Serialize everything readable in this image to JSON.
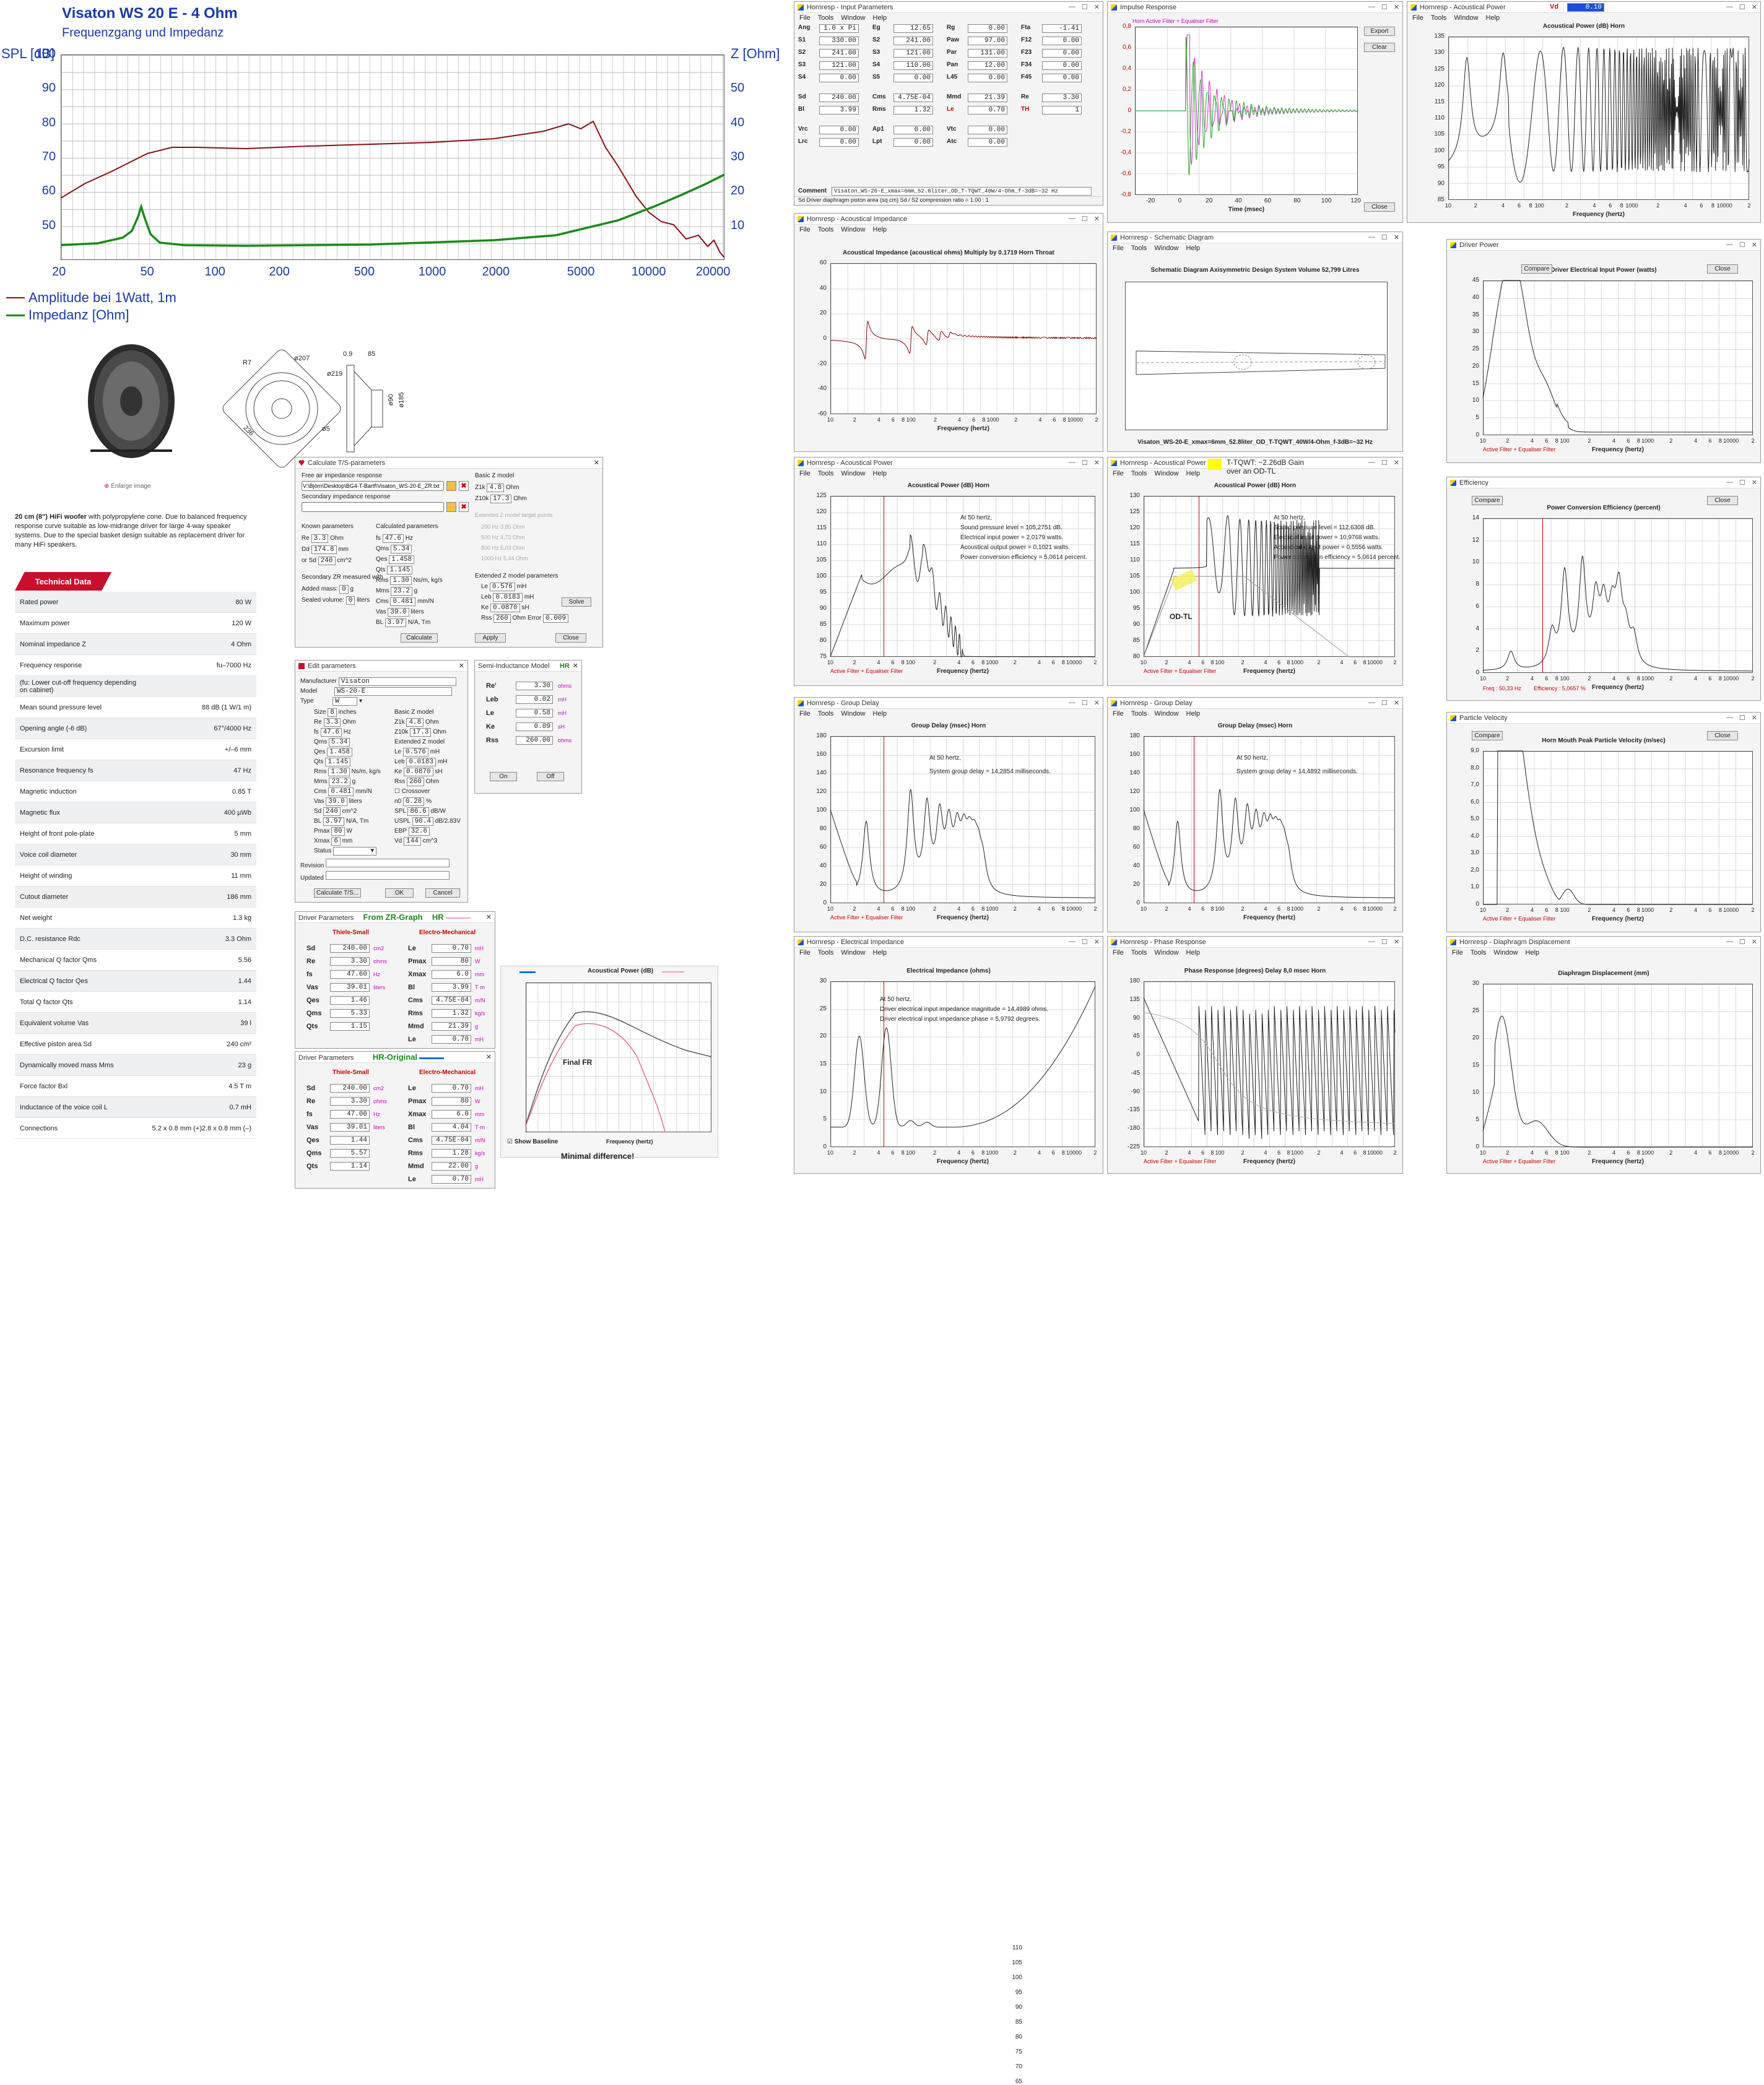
{
  "datasheet": {
    "title": "Visaton WS 20 E - 4 Ohm",
    "subtitle": "Frequenzgang und Impedanz",
    "left_unit": "SPL [dB]",
    "right_unit": "Z [Ohm]",
    "y_left": [
      "100",
      "90",
      "80",
      "70",
      "60",
      "50"
    ],
    "y_right": [
      "50",
      "40",
      "30",
      "20",
      "10"
    ],
    "x_ticks": [
      "20",
      "50",
      "100",
      "200",
      "500",
      "1000",
      "2000",
      "5000",
      "10000",
      "20000"
    ],
    "legend_amp": "Amplitude bei 1Watt, 1m",
    "legend_imp": "Impedanz [Ohm]",
    "dims": {
      "d207": "ø207",
      "d219": "ø219",
      "r7": "R7",
      "w236": "236",
      "d5": "ø5",
      "t09": "0.9",
      "t85": "85",
      "d90": "ø90",
      "d185": "ø185"
    },
    "enlarge": "Enlarge image",
    "description_bold": "20 cm (8\") HiFi woofer",
    "description": " with polypropylene cone. Due to balanced frequency response curve suitable as low-midrange driver for large 4-way speaker systems. Due to the special basket design suitable as replacement driver for many HiFi speakers.",
    "tech_tab": "Technical Data",
    "rows": [
      [
        "Rated power",
        "80 W"
      ],
      [
        "Maximum power",
        "120 W"
      ],
      [
        "Nominal impedance Z",
        "4 Ohm"
      ],
      [
        "Frequency response",
        "fu–7000 Hz"
      ],
      [
        "(fu: Lower cut-off frequency depending on cabinet)",
        ""
      ],
      [
        "Mean sound pressure level",
        "88 dB (1 W/1 m)"
      ],
      [
        "Opening angle (-6 dB)",
        "67°/4000 Hz"
      ],
      [
        "Excursion limit",
        "+/–6 mm"
      ],
      [
        "Resonance frequency fs",
        "47 Hz"
      ],
      [
        "Magnetic induction",
        "0.85 T"
      ],
      [
        "Magnetic flux",
        "400 µWb"
      ],
      [
        "Height of front pole-plate",
        "5 mm"
      ],
      [
        "Voice coil diameter",
        "30 mm"
      ],
      [
        "Height of winding",
        "11 mm"
      ],
      [
        "Cutout diameter",
        "186 mm"
      ],
      [
        "Net weight",
        "1.3 kg"
      ],
      [
        "D.C. resistance Rdc",
        "3.3 Ohm"
      ],
      [
        "Mechanical Q factor Qms",
        "5.56"
      ],
      [
        "Electrical Q factor Qes",
        "1.44"
      ],
      [
        "Total Q factor Qts",
        "1.14"
      ],
      [
        "Equivalent volume Vas",
        "39 l"
      ],
      [
        "Effective piston area Sd",
        "240 cm²"
      ],
      [
        "Dynamically moved mass Mms",
        "23 g"
      ],
      [
        "Force factor Bxl",
        "4.5 T m"
      ],
      [
        "Inductance of the voice coil L",
        "0.7 mH"
      ],
      [
        "Connections",
        "5.2 x 0.8 mm (+)2.8 x 0.8 mm (–)"
      ]
    ]
  },
  "ts_calc": {
    "title": "Calculate T/S-parameters",
    "free_label": "Free air impedance response",
    "free_path": "V:\\Björn\\Desktop\\BG4-T-Bartf\\Visaton_WS-20-E_ZR.txt",
    "sec_label": "Secondary impedance response",
    "known": "Known parameters",
    "calc": "Calculated parameters",
    "basic_z": "Basic Z model",
    "ext_z_targets": "Extended Z model target points",
    "ext_z": "Extended Z model parameters",
    "sec_zr": "Secondary ZR measured with",
    "added_mass": "Added mass:",
    "sealed_volume": "Sealed volume:",
    "buttons": [
      "Calculate",
      "Apply",
      "Close",
      "Solve"
    ]
  },
  "edit_params": {
    "title": "Edit parameters",
    "manufacturer": "Visaton",
    "model": "WS-20-E",
    "type": "W",
    "buttons": [
      "Calculate T/S...",
      "OK",
      "Cancel"
    ]
  },
  "semi_ind": {
    "title": "Semi-Inductance Model",
    "tag": "HR",
    "rows": [
      [
        "Re'",
        "3.30",
        "ohms"
      ],
      [
        "Leb",
        "0.02",
        "mH"
      ],
      [
        "Le",
        "0.58",
        "mH"
      ],
      [
        "Ke",
        "0.09",
        "sH"
      ],
      [
        "Rss",
        "260.00",
        "ohms"
      ]
    ],
    "on": "On",
    "off": "Off"
  },
  "dp_zr": {
    "title": "Driver Parameters",
    "tag": "From ZR-Graph",
    "hr": "HR",
    "ts": "Thiele-Small",
    "em": "Electro-Mechanical",
    "left": [
      [
        "Sd",
        "240.00",
        "cm2"
      ],
      [
        "Re",
        "3.30",
        "ohms"
      ],
      [
        "fs",
        "47.60",
        "Hz"
      ],
      [
        "Vas",
        "39.01",
        "liters"
      ],
      [
        "Qes",
        "1.46",
        ""
      ],
      [
        "Qms",
        "5.33",
        ""
      ],
      [
        "Qts",
        "1.15",
        ""
      ]
    ],
    "right": [
      [
        "Le",
        "0.70",
        "mH"
      ],
      [
        "Pmax",
        "80",
        "W"
      ],
      [
        "Xmax",
        "6.0",
        "mm"
      ],
      [
        "Bl",
        "3.99",
        "T·m"
      ],
      [
        "Cms",
        "4.75E-04",
        "m/N"
      ],
      [
        "Rms",
        "1.32",
        "kg/s"
      ],
      [
        "Mmd",
        "21.39",
        "g"
      ],
      [
        "Le",
        "0.70",
        "mH"
      ]
    ]
  },
  "dp_hr": {
    "title": "Driver Parameters",
    "tag": "HR-Original",
    "ts": "Thiele-Small",
    "em": "Electro-Mechanical",
    "left": [
      [
        "Sd",
        "240.00",
        "cm2"
      ],
      [
        "Re",
        "3.30",
        "ohms"
      ],
      [
        "fs",
        "47.00",
        "Hz"
      ],
      [
        "Vas",
        "39.01",
        "liters"
      ],
      [
        "Qes",
        "1.44",
        ""
      ],
      [
        "Qms",
        "5.57",
        ""
      ],
      [
        "Qts",
        "1.14",
        ""
      ]
    ],
    "right": [
      [
        "Le",
        "0.70",
        "mH"
      ],
      [
        "Pmax",
        "80",
        "W"
      ],
      [
        "Xmax",
        "6.0",
        "mm"
      ],
      [
        "Bl",
        "4.04",
        "T·m"
      ],
      [
        "Cms",
        "4.75E-04",
        "m/N"
      ],
      [
        "Rms",
        "1.28",
        "kg/s"
      ],
      [
        "Mmd",
        "22.00",
        "g"
      ],
      [
        "Le",
        "0.70",
        "mH"
      ]
    ]
  },
  "compare_plot": {
    "title": "Acoustical Power (dB)",
    "label": "Final FR",
    "show_baseline": "Show Baseline",
    "xlabel": "Frequency (hertz)",
    "caption": "Minimal difference!",
    "y": [
      "110",
      "105",
      "100",
      "95",
      "90",
      "85",
      "80",
      "75",
      "70",
      "65"
    ]
  },
  "input_params": {
    "title": "Hornresp - Input Parameters",
    "rows": [
      [
        [
          "Ang",
          "1.0 x Pi"
        ],
        [
          "Eg",
          "12.65"
        ],
        [
          "Rg",
          "0.00"
        ],
        [
          "Fta",
          "-1.41"
        ]
      ],
      [
        [
          "S1",
          "330.00"
        ],
        [
          "S2",
          "241.00"
        ],
        [
          "Paw",
          "97.00"
        ],
        [
          "F12",
          "0.00"
        ]
      ],
      [
        [
          "S2",
          "241.00"
        ],
        [
          "S3",
          "121.00"
        ],
        [
          "Par",
          "131.00"
        ],
        [
          "F23",
          "0.00"
        ]
      ],
      [
        [
          "S3",
          "121.00"
        ],
        [
          "S4",
          "110.00"
        ],
        [
          "Pan",
          "12.00"
        ],
        [
          "F34",
          "0.00"
        ]
      ],
      [
        [
          "S4",
          "0.00"
        ],
        [
          "S5",
          "0.00"
        ],
        [
          "L45",
          "0.00"
        ],
        [
          "F45",
          "0.00"
        ]
      ],
      [
        [
          "Sd",
          "240.00"
        ],
        [
          "Cms",
          "4.75E-04"
        ],
        [
          "Mmd",
          "21.39"
        ],
        [
          "Re",
          "3.30"
        ]
      ],
      [
        [
          "Bl",
          "3.99"
        ],
        [
          "Rms",
          "1.32"
        ],
        [
          "Le",
          "0.70"
        ],
        [
          "TH",
          "1"
        ]
      ],
      [
        [
          "Vrc",
          "0.00"
        ],
        [
          "Ap1",
          "0.00"
        ],
        [
          "Vtc",
          "0.00"
        ],
        [
          "",
          ""
        ]
      ],
      [
        [
          "Lrc",
          "0.00"
        ],
        [
          "Lpt",
          "0.00"
        ],
        [
          "Atc",
          "0.00"
        ],
        [
          "",
          ""
        ]
      ]
    ],
    "comment_label": "Comment",
    "comment": "Visaton_WS-20-E_xmax=6mm_52.8liter_OD_T-TQWT_40W/4-Ohm_f-3dB=~32 Hz",
    "status": "Sd  Driver diaphragm piston area (sq cm)    Sd / S2 compression ratio = 1.00 : 1"
  },
  "impulse": {
    "title": "Impulse Response",
    "legend": "Horn   Active Filter + Equaliser Filter",
    "buttons": [
      "Export",
      "Clear",
      "Close"
    ],
    "y": [
      "0,8",
      "0,6",
      "0,4",
      "0,2",
      "0",
      "-0,2",
      "-0,4",
      "-0,6",
      "-0,8"
    ],
    "x": [
      "-20",
      "0",
      "20",
      "40",
      "60",
      "80",
      "100",
      "120"
    ],
    "xlabel": "Time (msec)"
  },
  "ap_top": {
    "title": "Hornresp - Acoustical Power",
    "vd_label": "Vd",
    "vd": "0.10",
    "ptitle": "Acoustical Power (dB)   Horn",
    "y": [
      "135",
      "130",
      "125",
      "120",
      "115",
      "110",
      "105",
      "100",
      "95",
      "90",
      "85"
    ],
    "xlabel": "Frequency (hertz)"
  },
  "acoustic_imp": {
    "title": "Hornresp - Acoustical Impedance",
    "ptitle": "Acoustical Impedance (acoustical ohms)   Multiply by 0.1719   Horn Throat",
    "y": [
      "60",
      "40",
      "20",
      "0",
      "-20",
      "-40",
      "-60"
    ],
    "xlabel": "Frequency (hertz)"
  },
  "schematic": {
    "title": "Hornresp - Schematic Diagram",
    "ptitle": "Schematic Diagram    Axisymmetric Design    System Volume 52,799 Litres",
    "caption": "Visaton_WS-20-E_xmax=6mm_52.8liter_OD_T-TQWT_40W/4-Ohm_f-3dB=~32 Hz"
  },
  "driver_power": {
    "title": "Driver Power",
    "compare": "Compare",
    "close": "Close",
    "ptitle": "Driver Electrical Input Power (watts)",
    "y": [
      "45",
      "40",
      "35",
      "30",
      "25",
      "20",
      "15",
      "10",
      "5",
      "0"
    ],
    "legend": "Active Filter + Equaliser Filter",
    "xlabel": "Frequency (hertz)"
  },
  "ap_mid1": {
    "title": "Hornresp - Acoustical Power",
    "ptitle": "Acoustical Power (dB)   Horn",
    "notes": [
      "At 50 hertz,",
      "Sound pressure level = 105,2751 dB.",
      "Electrical input power = 2,0179 watts.",
      "Acoustical output power = 0,1021 watts.",
      "Power conversion efficiency = 5,0614 percent."
    ],
    "y": [
      "125",
      "120",
      "115",
      "110",
      "105",
      "100",
      "95",
      "90",
      "85",
      "80",
      "75"
    ],
    "legend": "Active Filter + Equaliser Filter",
    "xlabel": "Frequency (hertz)"
  },
  "ap_mid2": {
    "title": "Hornresp - Acoustical Power",
    "gain": "T-TQWT: ~2.26dB Gain",
    "gain2": "over an OD-TL",
    "label": "OD-TL",
    "ptitle": "Acoustical Power (dB)   Horn",
    "notes": [
      "At 50 hertz,",
      "Sound pressure level = 112,6308 dB.",
      "Electrical input power = 10,9768 watts.",
      "Acoustical output power = 0,5556 watts.",
      "Power conversion efficiency = 5,0614 percent."
    ],
    "y": [
      "130",
      "125",
      "120",
      "115",
      "110",
      "105",
      "100",
      "95",
      "90",
      "85",
      "80"
    ],
    "legend": "Active Filter + Equaliser Filter",
    "xlabel": "Frequency (hertz)"
  },
  "efficiency": {
    "title": "Efficiency",
    "compare": "Compare",
    "close": "Close",
    "ptitle": "Power Conversion Efficiency (percent)",
    "y": [
      "14",
      "12",
      "10",
      "8",
      "6",
      "4",
      "2",
      "0"
    ],
    "freq": "Freq : 50,33 Hz",
    "eff": "Efficiency : 5,0657 %",
    "xlabel": "Frequency (hertz)"
  },
  "gd1": {
    "title": "Hornresp - Group Delay",
    "ptitle": "Group Delay (msec)   Horn",
    "notes": [
      "At 50 hertz,",
      "System group delay = 14,2854 milliseconds."
    ],
    "y": [
      "180",
      "160",
      "140",
      "120",
      "100",
      "80",
      "60",
      "40",
      "20",
      "0"
    ],
    "legend": "Active Filter + Equaliser Filter",
    "xlabel": "Frequency (hertz)"
  },
  "gd2": {
    "title": "Hornresp - Group Delay",
    "ptitle": "Group Delay (msec)   Horn",
    "notes": [
      "At 50 hertz,",
      "System group delay = 14,4892 milliseconds."
    ],
    "y": [
      "180",
      "160",
      "140",
      "120",
      "100",
      "80",
      "60",
      "40",
      "20",
      "0"
    ],
    "xlabel": "Frequency (hertz)"
  },
  "particle": {
    "title": "Particle Velocity",
    "compare": "Compare",
    "close": "Close",
    "ptitle": "Horn Mouth Peak Particle Velocity (m/sec)",
    "y": [
      "9,0",
      "8,0",
      "7,0",
      "6,0",
      "5,0",
      "4,0",
      "3,0",
      "2,0",
      "1,0",
      "0"
    ],
    "legend": "Active Filter + Equaliser Filter",
    "xlabel": "Frequency (hertz)"
  },
  "elec_imp": {
    "title": "Hornresp - Electrical Impedance",
    "ptitle": "Electrical Impedance (ohms)",
    "notes": [
      "At 50 hertz,",
      "Driver electrical input impedance magnitude = 14,4989 ohms.",
      "Driver electrical input impedance phase = 5,9792 degrees."
    ],
    "y": [
      "30",
      "25",
      "20",
      "15",
      "10",
      "5",
      "0"
    ],
    "xlabel": "Frequency (hertz)"
  },
  "phase": {
    "title": "Hornresp - Phase Response",
    "ptitle": "Phase Response (degrees)   Delay 8,0 msec   Horn",
    "y": [
      "180",
      "135",
      "90",
      "45",
      "0",
      "-45",
      "-90",
      "-135",
      "-180",
      "-225"
    ],
    "legend": "Active Filter + Equaliser Filter",
    "xlabel": "Frequency (hertz)"
  },
  "displacement": {
    "title": "Hornresp - Diaphragm Displacement",
    "ptitle": "Diaphragm Displacement (mm)",
    "y": [
      "30",
      "25",
      "20",
      "15",
      "10",
      "5",
      "0"
    ],
    "legend": "Active Filter + Equaliser Filter",
    "xlabel": "Frequency (hertz)"
  },
  "menus": [
    "File",
    "Tools",
    "Window",
    "Help"
  ],
  "xticks_log": [
    "10",
    "2",
    "4",
    "6",
    "8",
    "100",
    "2",
    "4",
    "6",
    "8",
    "1000",
    "2",
    "4",
    "6",
    "8",
    "10000",
    "2"
  ],
  "colors": {
    "red": "#b40000",
    "green": "#1a8a1a",
    "magenta": "#cc44cc",
    "accent": "#c8102e"
  }
}
